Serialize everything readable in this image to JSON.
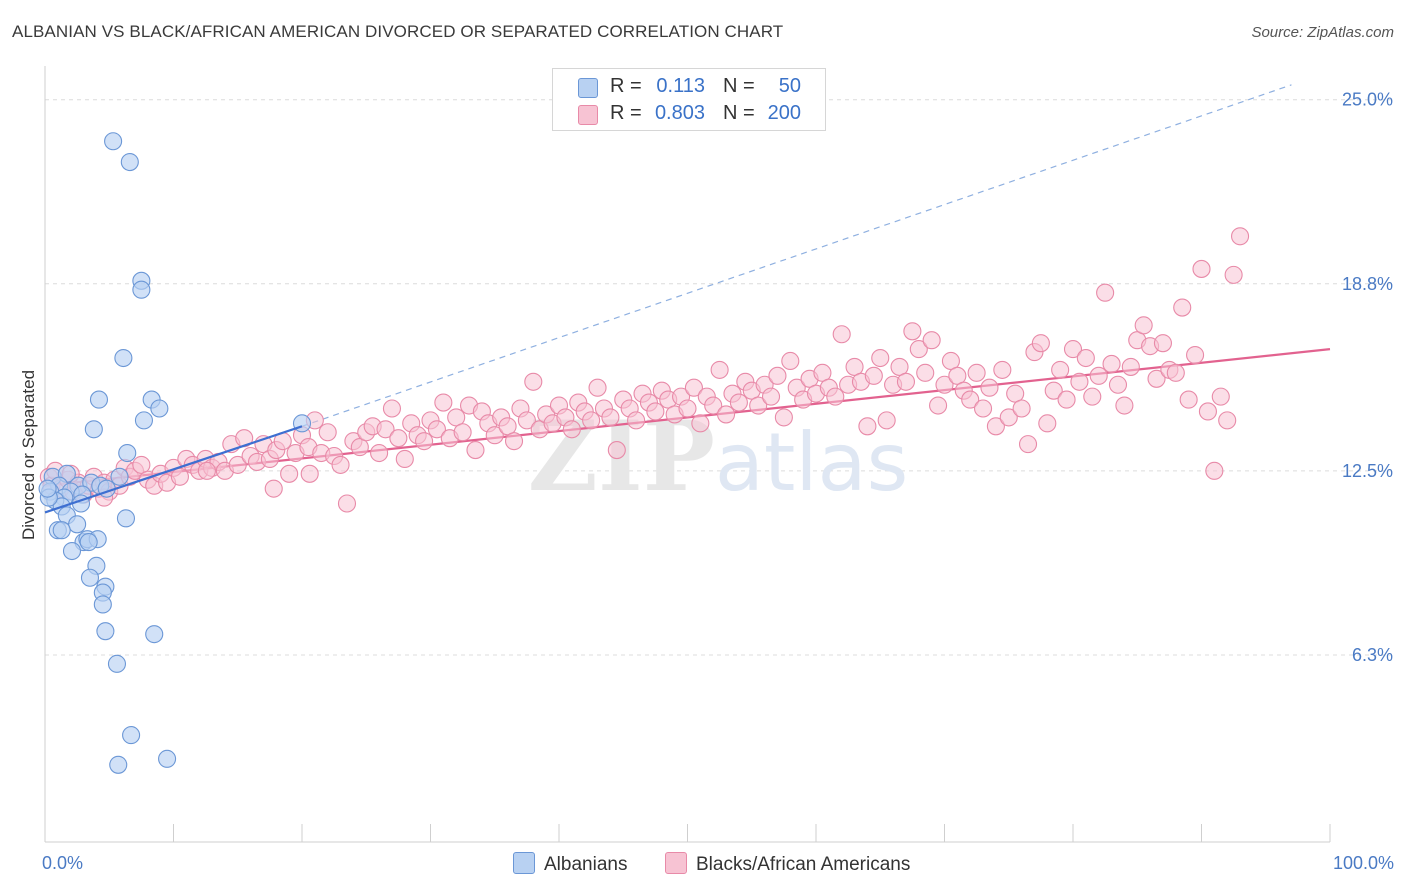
{
  "title": "ALBANIAN VS BLACK/AFRICAN AMERICAN DIVORCED OR SEPARATED CORRELATION CHART",
  "source": "Source: ZipAtlas.com",
  "legend": {
    "rows": [
      {
        "r_label": "R =",
        "r_value": "0.113",
        "n_label": "N =",
        "n_value": "50"
      },
      {
        "r_label": "R =",
        "r_value": "0.803",
        "n_label": "N =",
        "n_value": "200"
      }
    ]
  },
  "bottom_legend": {
    "albanians": "Albanians",
    "blacks": "Blacks/African Americans"
  },
  "colors": {
    "albanian_fill": "#b8d1f2",
    "albanian_stroke": "#6b97d6",
    "albanian_line": "#3d6fd1",
    "black_fill": "#f7c3d3",
    "black_stroke": "#e88aa8",
    "black_line": "#e2628f",
    "tick_label": "#4a7ac4",
    "grid": "#dcdcdc"
  },
  "chart_data": {
    "type": "scatter",
    "xlabel": "",
    "ylabel": "Divorced or Separated",
    "xlim": [
      0,
      100
    ],
    "ylim": [
      0,
      26
    ],
    "x_tick_labels": [
      {
        "x": 0,
        "label": "0.0%"
      },
      {
        "x": 100,
        "label": "100.0%"
      }
    ],
    "y_ticks": [
      {
        "y": 6.3,
        "label": "6.3%"
      },
      {
        "y": 12.5,
        "label": "12.5%"
      },
      {
        "y": 18.8,
        "label": "18.8%"
      },
      {
        "y": 25.0,
        "label": "25.0%"
      }
    ],
    "watermark": "ZIPatlas",
    "series": [
      {
        "name": "Albanians",
        "r": 0.113,
        "n": 50,
        "trend": {
          "x": [
            0,
            20
          ],
          "y": [
            11.1,
            14.0
          ]
        },
        "trend_extension": {
          "x": [
            20,
            97
          ],
          "y": [
            14.0,
            25.5
          ]
        },
        "points": [
          [
            5.3,
            23.6
          ],
          [
            6.6,
            22.9
          ],
          [
            7.5,
            18.9
          ],
          [
            7.5,
            18.6
          ],
          [
            6.1,
            16.3
          ],
          [
            4.2,
            14.9
          ],
          [
            8.3,
            14.9
          ],
          [
            8.9,
            14.6
          ],
          [
            7.7,
            14.2
          ],
          [
            3.8,
            13.9
          ],
          [
            6.4,
            13.1
          ],
          [
            20.0,
            14.1
          ],
          [
            0.6,
            12.3
          ],
          [
            1.7,
            12.4
          ],
          [
            2.6,
            12.0
          ],
          [
            3.6,
            12.1
          ],
          [
            4.3,
            12.0
          ],
          [
            5.8,
            12.3
          ],
          [
            1.1,
            12.0
          ],
          [
            2.0,
            11.8
          ],
          [
            2.9,
            11.7
          ],
          [
            0.4,
            11.8
          ],
          [
            1.5,
            11.6
          ],
          [
            0.8,
            11.5
          ],
          [
            1.3,
            11.3
          ],
          [
            2.8,
            11.4
          ],
          [
            4.8,
            11.9
          ],
          [
            1.7,
            11.0
          ],
          [
            0.3,
            11.6
          ],
          [
            6.3,
            10.9
          ],
          [
            2.5,
            10.7
          ],
          [
            1.0,
            10.5
          ],
          [
            1.3,
            10.5
          ],
          [
            3.0,
            10.1
          ],
          [
            3.3,
            10.2
          ],
          [
            4.1,
            10.2
          ],
          [
            2.1,
            9.8
          ],
          [
            3.4,
            10.1
          ],
          [
            4.0,
            9.3
          ],
          [
            3.5,
            8.9
          ],
          [
            4.7,
            8.6
          ],
          [
            4.5,
            8.4
          ],
          [
            4.5,
            8.0
          ],
          [
            4.7,
            7.1
          ],
          [
            8.5,
            7.0
          ],
          [
            5.6,
            6.0
          ],
          [
            6.7,
            3.6
          ],
          [
            5.7,
            2.6
          ],
          [
            9.5,
            2.8
          ],
          [
            0.2,
            11.9
          ]
        ]
      },
      {
        "name": "Blacks/African Americans",
        "r": 0.803,
        "n": 200,
        "trend": {
          "x": [
            0,
            100
          ],
          "y": [
            12.0,
            16.6
          ]
        },
        "points": [
          [
            0.3,
            12.3
          ],
          [
            0.5,
            12.0
          ],
          [
            0.8,
            12.5
          ],
          [
            1.2,
            11.9
          ],
          [
            1.8,
            12.2
          ],
          [
            2.2,
            11.8
          ],
          [
            2.6,
            12.1
          ],
          [
            3.0,
            11.7
          ],
          [
            3.4,
            12.0
          ],
          [
            3.8,
            12.3
          ],
          [
            4.2,
            11.9
          ],
          [
            4.6,
            12.1
          ],
          [
            5.0,
            11.8
          ],
          [
            5.4,
            12.2
          ],
          [
            5.8,
            12.0
          ],
          [
            6.2,
            12.6
          ],
          [
            6.6,
            12.3
          ],
          [
            7.0,
            12.5
          ],
          [
            7.5,
            12.7
          ],
          [
            8.0,
            12.2
          ],
          [
            8.5,
            12.0
          ],
          [
            9.0,
            12.4
          ],
          [
            9.5,
            12.1
          ],
          [
            10.0,
            12.6
          ],
          [
            10.5,
            12.3
          ],
          [
            11.0,
            12.9
          ],
          [
            11.5,
            12.7
          ],
          [
            12.0,
            12.5
          ],
          [
            12.5,
            12.9
          ],
          [
            13.0,
            12.6
          ],
          [
            13.5,
            12.8
          ],
          [
            14.0,
            12.5
          ],
          [
            14.5,
            13.4
          ],
          [
            15.0,
            12.7
          ],
          [
            15.5,
            13.6
          ],
          [
            16.0,
            13.0
          ],
          [
            16.5,
            12.8
          ],
          [
            17.0,
            13.4
          ],
          [
            17.5,
            12.9
          ],
          [
            18.0,
            13.2
          ],
          [
            18.5,
            13.5
          ],
          [
            19.0,
            12.4
          ],
          [
            19.5,
            13.1
          ],
          [
            20.0,
            13.7
          ],
          [
            20.5,
            13.3
          ],
          [
            21.0,
            14.2
          ],
          [
            21.5,
            13.1
          ],
          [
            22.0,
            13.8
          ],
          [
            22.5,
            13.0
          ],
          [
            23.0,
            12.7
          ],
          [
            23.5,
            11.4
          ],
          [
            24.0,
            13.5
          ],
          [
            24.5,
            13.3
          ],
          [
            25.0,
            13.8
          ],
          [
            25.5,
            14.0
          ],
          [
            26.0,
            13.1
          ],
          [
            26.5,
            13.9
          ],
          [
            27.0,
            14.6
          ],
          [
            27.5,
            13.6
          ],
          [
            28.0,
            12.9
          ],
          [
            28.5,
            14.1
          ],
          [
            29.0,
            13.7
          ],
          [
            29.5,
            13.5
          ],
          [
            30.0,
            14.2
          ],
          [
            30.5,
            13.9
          ],
          [
            31.0,
            14.8
          ],
          [
            31.5,
            13.6
          ],
          [
            32.0,
            14.3
          ],
          [
            32.5,
            13.8
          ],
          [
            33.0,
            14.7
          ],
          [
            33.5,
            13.2
          ],
          [
            34.0,
            14.5
          ],
          [
            34.5,
            14.1
          ],
          [
            35.0,
            13.7
          ],
          [
            35.5,
            14.3
          ],
          [
            36.0,
            14.0
          ],
          [
            36.5,
            13.5
          ],
          [
            37.0,
            14.6
          ],
          [
            37.5,
            14.2
          ],
          [
            38.0,
            15.5
          ],
          [
            38.5,
            13.9
          ],
          [
            39.0,
            14.4
          ],
          [
            39.5,
            14.1
          ],
          [
            40.0,
            14.7
          ],
          [
            40.5,
            14.3
          ],
          [
            41.0,
            13.9
          ],
          [
            41.5,
            14.8
          ],
          [
            42.0,
            14.5
          ],
          [
            42.5,
            14.2
          ],
          [
            43.0,
            15.3
          ],
          [
            43.5,
            14.6
          ],
          [
            44.0,
            14.3
          ],
          [
            44.5,
            13.2
          ],
          [
            45.0,
            14.9
          ],
          [
            45.5,
            14.6
          ],
          [
            46.0,
            14.2
          ],
          [
            46.5,
            15.1
          ],
          [
            47.0,
            14.8
          ],
          [
            47.5,
            14.5
          ],
          [
            48.0,
            15.2
          ],
          [
            48.5,
            14.9
          ],
          [
            49.0,
            14.4
          ],
          [
            49.5,
            15.0
          ],
          [
            50.0,
            14.6
          ],
          [
            50.5,
            15.3
          ],
          [
            51.0,
            14.1
          ],
          [
            51.5,
            15.0
          ],
          [
            52.0,
            14.7
          ],
          [
            52.5,
            15.9
          ],
          [
            53.0,
            14.4
          ],
          [
            53.5,
            15.1
          ],
          [
            54.0,
            14.8
          ],
          [
            54.5,
            15.5
          ],
          [
            55.0,
            15.2
          ],
          [
            55.5,
            14.7
          ],
          [
            56.0,
            15.4
          ],
          [
            56.5,
            15.0
          ],
          [
            57.0,
            15.7
          ],
          [
            57.5,
            14.3
          ],
          [
            58.0,
            16.2
          ],
          [
            58.5,
            15.3
          ],
          [
            59.0,
            14.9
          ],
          [
            59.5,
            15.6
          ],
          [
            60.0,
            15.1
          ],
          [
            60.5,
            15.8
          ],
          [
            61.0,
            15.3
          ],
          [
            61.5,
            15.0
          ],
          [
            62.0,
            17.1
          ],
          [
            62.5,
            15.4
          ],
          [
            63.0,
            16.0
          ],
          [
            63.5,
            15.5
          ],
          [
            64.0,
            14.0
          ],
          [
            64.5,
            15.7
          ],
          [
            65.0,
            16.3
          ],
          [
            65.5,
            14.2
          ],
          [
            66.0,
            15.4
          ],
          [
            66.5,
            16.0
          ],
          [
            67.0,
            15.5
          ],
          [
            67.5,
            17.2
          ],
          [
            68.0,
            16.6
          ],
          [
            68.5,
            15.8
          ],
          [
            69.0,
            16.9
          ],
          [
            69.5,
            14.7
          ],
          [
            70.0,
            15.4
          ],
          [
            70.5,
            16.2
          ],
          [
            71.0,
            15.7
          ],
          [
            71.5,
            15.2
          ],
          [
            72.0,
            14.9
          ],
          [
            72.5,
            15.8
          ],
          [
            73.0,
            14.6
          ],
          [
            73.5,
            15.3
          ],
          [
            74.0,
            14.0
          ],
          [
            74.5,
            15.9
          ],
          [
            75.0,
            14.3
          ],
          [
            75.5,
            15.1
          ],
          [
            76.0,
            14.6
          ],
          [
            76.5,
            13.4
          ],
          [
            77.0,
            16.5
          ],
          [
            77.5,
            16.8
          ],
          [
            78.0,
            14.1
          ],
          [
            78.5,
            15.2
          ],
          [
            79.0,
            15.9
          ],
          [
            79.5,
            14.9
          ],
          [
            80.0,
            16.6
          ],
          [
            80.5,
            15.5
          ],
          [
            81.0,
            16.3
          ],
          [
            81.5,
            15.0
          ],
          [
            82.0,
            15.7
          ],
          [
            82.5,
            18.5
          ],
          [
            83.0,
            16.1
          ],
          [
            83.5,
            15.4
          ],
          [
            84.0,
            14.7
          ],
          [
            84.5,
            16.0
          ],
          [
            85.0,
            16.9
          ],
          [
            85.5,
            17.4
          ],
          [
            86.0,
            16.7
          ],
          [
            86.5,
            15.6
          ],
          [
            87.0,
            16.8
          ],
          [
            87.5,
            15.9
          ],
          [
            88.0,
            15.8
          ],
          [
            88.5,
            18.0
          ],
          [
            89.0,
            14.9
          ],
          [
            89.5,
            16.4
          ],
          [
            90.0,
            19.3
          ],
          [
            90.5,
            14.5
          ],
          [
            91.0,
            12.5
          ],
          [
            91.5,
            15.0
          ],
          [
            92.0,
            14.2
          ],
          [
            92.5,
            19.1
          ],
          [
            93.0,
            20.4
          ],
          [
            2.0,
            12.4
          ],
          [
            4.6,
            11.6
          ],
          [
            12.6,
            12.5
          ],
          [
            17.8,
            11.9
          ],
          [
            20.6,
            12.4
          ]
        ]
      }
    ]
  }
}
